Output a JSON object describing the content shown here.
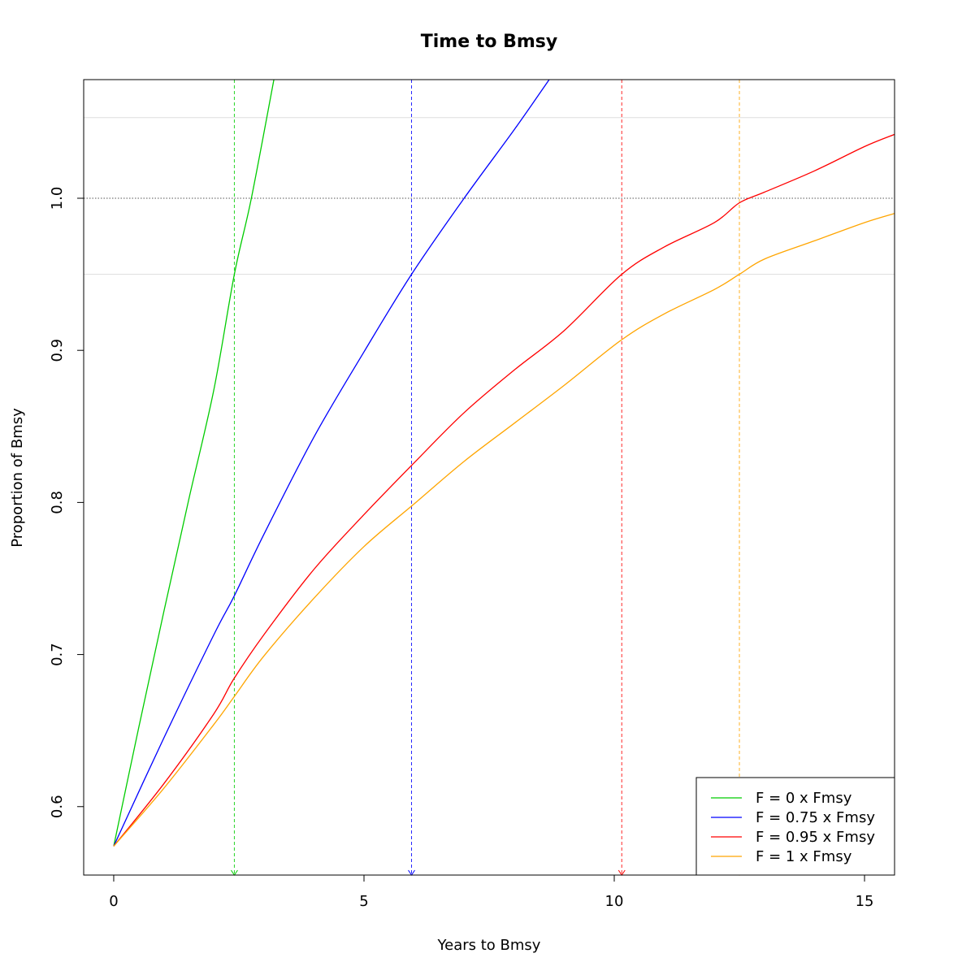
{
  "chart_data": {
    "type": "line",
    "title": "Time to Bmsy",
    "xlabel": "Years to Bmsy",
    "ylabel": "Proportion of Bmsy",
    "xlim": [
      -0.6,
      15.6
    ],
    "ylim": [
      0.555,
      1.078
    ],
    "x_ticks": [
      0,
      5,
      10,
      15
    ],
    "y_ticks": [
      0.6,
      0.7,
      0.8,
      0.9,
      1.0
    ],
    "x_tick_labels": [
      "0",
      "5",
      "10",
      "15"
    ],
    "y_tick_labels": [
      "0.6",
      "0.7",
      "0.8",
      "0.9",
      "1.0"
    ],
    "reference_lines": [
      {
        "y": 1.0,
        "style": "dotted",
        "color": "#555555"
      },
      {
        "y": 0.95,
        "style": "solid",
        "color": "#dddddd"
      },
      {
        "y": 1.053,
        "style": "solid",
        "color": "#dddddd"
      }
    ],
    "grid": false,
    "legend_position": "bottom-right",
    "series": [
      {
        "name": "F = 0 x Fmsy",
        "color": "#00cc00",
        "time_to_95pct": 2.41,
        "x": [
          0,
          0.5,
          1,
          1.5,
          2,
          2.41,
          2.75,
          3.2
        ],
        "y": [
          0.574,
          0.652,
          0.728,
          0.802,
          0.874,
          0.95,
          1.0,
          1.078
        ]
      },
      {
        "name": "F = 0.75 x Fmsy",
        "color": "#0000ff",
        "time_to_95pct": 5.95,
        "x": [
          0,
          1,
          2,
          2.4,
          3,
          4,
          5,
          5.95,
          7,
          8,
          8.7
        ],
        "y": [
          0.574,
          0.645,
          0.713,
          0.738,
          0.779,
          0.843,
          0.899,
          0.95,
          1.0,
          1.045,
          1.078
        ]
      },
      {
        "name": "F = 0.95 x Fmsy",
        "color": "#ff0000",
        "time_to_95pct": 10.15,
        "x": [
          0,
          1,
          2,
          2.4,
          3,
          4,
          5,
          6,
          7,
          8,
          9,
          10.15,
          11,
          12,
          12.5,
          13,
          14,
          15,
          15.6
        ],
        "y": [
          0.574,
          0.615,
          0.661,
          0.684,
          0.713,
          0.756,
          0.792,
          0.826,
          0.859,
          0.887,
          0.913,
          0.95,
          0.968,
          0.984,
          0.997,
          1.004,
          1.018,
          1.034,
          1.042
        ]
      },
      {
        "name": "F = 1 x Fmsy",
        "color": "#ffa500",
        "time_to_95pct": 12.5,
        "x": [
          0,
          1,
          2,
          2.4,
          3,
          4,
          5,
          6,
          7,
          8,
          9,
          10.15,
          11,
          12,
          12.5,
          13,
          14,
          15,
          15.6
        ],
        "y": [
          0.574,
          0.612,
          0.654,
          0.672,
          0.699,
          0.737,
          0.771,
          0.799,
          0.827,
          0.852,
          0.877,
          0.907,
          0.924,
          0.94,
          0.95,
          0.96,
          0.972,
          0.984,
          0.99
        ]
      }
    ]
  }
}
